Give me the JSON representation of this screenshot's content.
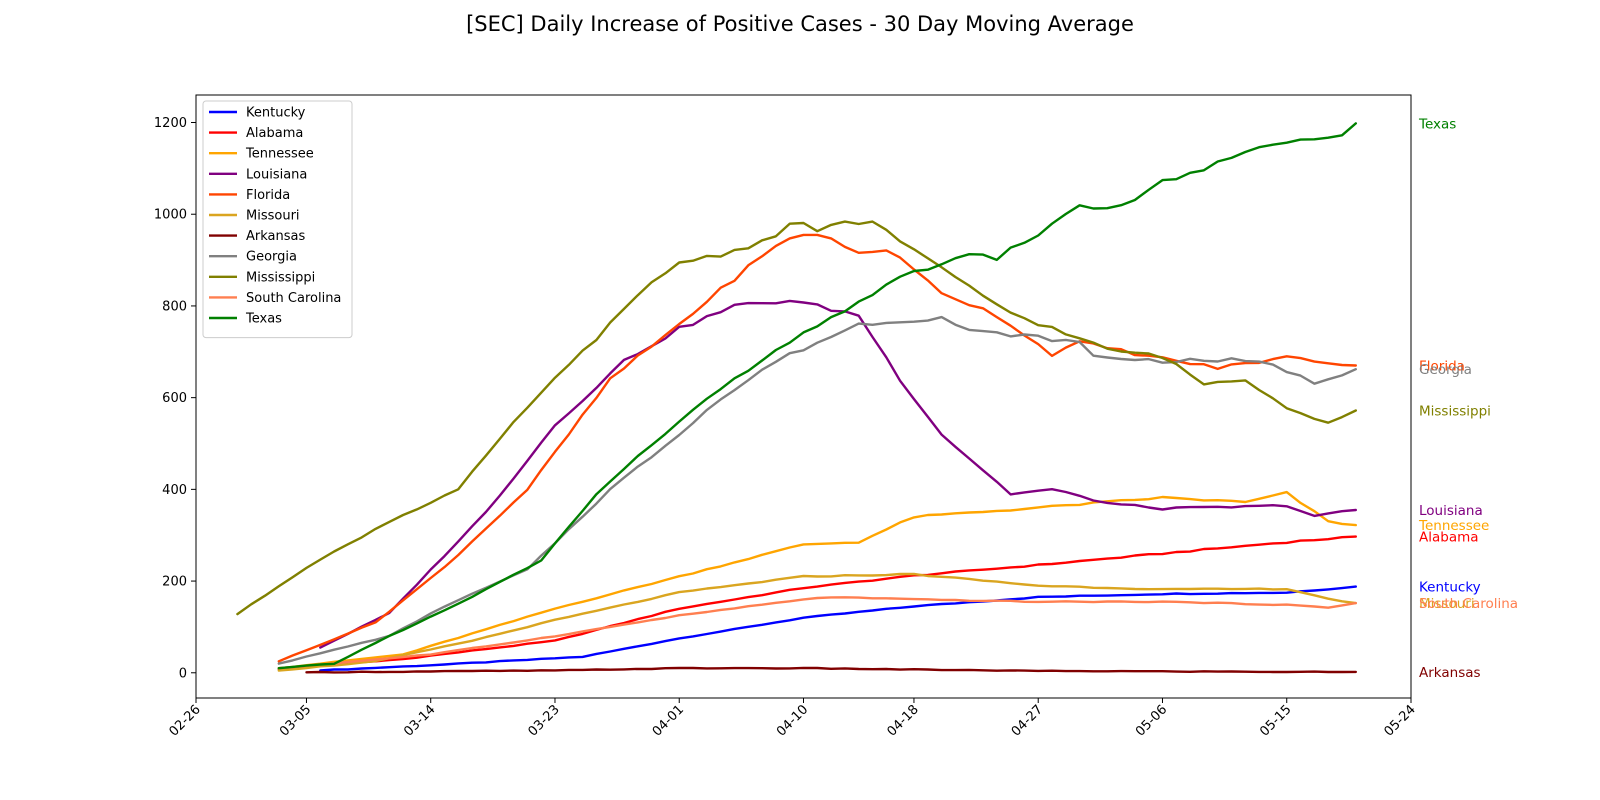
{
  "chart_data": {
    "type": "line",
    "title": "[SEC] Daily Increase of Positive Cases - 30 Day Moving Average",
    "xlabel": "",
    "ylabel": "",
    "x_range": [
      "2020-02-26",
      "2020-05-24"
    ],
    "ylim": [
      -55,
      1260
    ],
    "x_ticks": [
      "02-26",
      "03-05",
      "03-14",
      "03-23",
      "04-01",
      "04-10",
      "04-18",
      "04-27",
      "05-06",
      "05-15",
      "05-24"
    ],
    "y_ticks": [
      0,
      200,
      400,
      600,
      800,
      1000,
      1200
    ],
    "grid": false,
    "legend": "top-left",
    "end_labels": true,
    "series": [
      {
        "name": "Kentucky",
        "color": "#0000ff",
        "start": "2020-03-06",
        "points": [
          [
            "2020-03-06",
            5
          ],
          [
            "2020-03-15",
            18
          ],
          [
            "2020-03-25",
            35
          ],
          [
            "2020-04-01",
            75
          ],
          [
            "2020-04-10",
            120
          ],
          [
            "2020-04-18",
            145
          ],
          [
            "2020-04-27",
            165
          ],
          [
            "2020-05-06",
            172
          ],
          [
            "2020-05-15",
            175
          ],
          [
            "2020-05-20",
            188
          ]
        ]
      },
      {
        "name": "Alabama",
        "color": "#ff0000",
        "start": "2020-03-03",
        "points": [
          [
            "2020-03-03",
            8
          ],
          [
            "2020-03-12",
            30
          ],
          [
            "2020-03-23",
            70
          ],
          [
            "2020-04-01",
            140
          ],
          [
            "2020-04-10",
            185
          ],
          [
            "2020-04-18",
            212
          ],
          [
            "2020-04-27",
            235
          ],
          [
            "2020-05-06",
            260
          ],
          [
            "2020-05-15",
            285
          ],
          [
            "2020-05-20",
            297
          ]
        ]
      },
      {
        "name": "Tennessee",
        "color": "#ffa500",
        "start": "2020-03-03",
        "points": [
          [
            "2020-03-03",
            10
          ],
          [
            "2020-03-12",
            40
          ],
          [
            "2020-03-23",
            140
          ],
          [
            "2020-04-01",
            210
          ],
          [
            "2020-04-10",
            280
          ],
          [
            "2020-04-14",
            285
          ],
          [
            "2020-04-18",
            340
          ],
          [
            "2020-04-27",
            360
          ],
          [
            "2020-05-06",
            382
          ],
          [
            "2020-05-12",
            372
          ],
          [
            "2020-05-15",
            392
          ],
          [
            "2020-05-18",
            330
          ],
          [
            "2020-05-20",
            322
          ]
        ]
      },
      {
        "name": "Louisiana",
        "color": "#800080",
        "start": "2020-03-06",
        "points": [
          [
            "2020-03-06",
            55
          ],
          [
            "2020-03-11",
            130
          ],
          [
            "2020-03-18",
            350
          ],
          [
            "2020-03-23",
            540
          ],
          [
            "2020-03-28",
            680
          ],
          [
            "2020-04-01",
            750
          ],
          [
            "2020-04-05",
            800
          ],
          [
            "2020-04-09",
            812
          ],
          [
            "2020-04-14",
            780
          ],
          [
            "2020-04-17",
            640
          ],
          [
            "2020-04-20",
            520
          ],
          [
            "2020-04-25",
            390
          ],
          [
            "2020-04-28",
            400
          ],
          [
            "2020-05-02",
            370
          ],
          [
            "2020-05-06",
            358
          ],
          [
            "2020-05-12",
            362
          ],
          [
            "2020-05-15",
            365
          ],
          [
            "2020-05-17",
            342
          ],
          [
            "2020-05-20",
            355
          ]
        ]
      },
      {
        "name": "Florida",
        "color": "#ff4500",
        "start": "2020-03-03",
        "points": [
          [
            "2020-03-03",
            25
          ],
          [
            "2020-03-10",
            110
          ],
          [
            "2020-03-15",
            230
          ],
          [
            "2020-03-21",
            400
          ],
          [
            "2020-03-27",
            640
          ],
          [
            "2020-04-01",
            760
          ],
          [
            "2020-04-06",
            885
          ],
          [
            "2020-04-09",
            950
          ],
          [
            "2020-04-11",
            958
          ],
          [
            "2020-04-14",
            915
          ],
          [
            "2020-04-16",
            925
          ],
          [
            "2020-04-20",
            830
          ],
          [
            "2020-04-24",
            780
          ],
          [
            "2020-04-28",
            695
          ],
          [
            "2020-04-30",
            720
          ],
          [
            "2020-05-06",
            685
          ],
          [
            "2020-05-10",
            665
          ],
          [
            "2020-05-15",
            688
          ],
          [
            "2020-05-20",
            670
          ]
        ]
      },
      {
        "name": "Missouri",
        "color": "#daa520",
        "start": "2020-03-03",
        "points": [
          [
            "2020-03-03",
            5
          ],
          [
            "2020-03-10",
            25
          ],
          [
            "2020-03-17",
            70
          ],
          [
            "2020-03-23",
            115
          ],
          [
            "2020-04-01",
            175
          ],
          [
            "2020-04-10",
            210
          ],
          [
            "2020-04-18",
            215
          ],
          [
            "2020-04-27",
            190
          ],
          [
            "2020-05-06",
            182
          ],
          [
            "2020-05-15",
            183
          ],
          [
            "2020-05-19",
            155
          ],
          [
            "2020-05-20",
            152
          ]
        ]
      },
      {
        "name": "Arkansas",
        "color": "#800000",
        "start": "2020-03-05",
        "points": [
          [
            "2020-03-05",
            1
          ],
          [
            "2020-03-23",
            5
          ],
          [
            "2020-04-01",
            10
          ],
          [
            "2020-04-10",
            10
          ],
          [
            "2020-04-18",
            7
          ],
          [
            "2020-04-27",
            4
          ],
          [
            "2020-05-06",
            3
          ],
          [
            "2020-05-15",
            2
          ],
          [
            "2020-05-20",
            2
          ]
        ]
      },
      {
        "name": "Georgia",
        "color": "#808080",
        "start": "2020-03-03",
        "points": [
          [
            "2020-03-03",
            20
          ],
          [
            "2020-03-11",
            80
          ],
          [
            "2020-03-15",
            145
          ],
          [
            "2020-03-21",
            225
          ],
          [
            "2020-03-27",
            400
          ],
          [
            "2020-04-01",
            520
          ],
          [
            "2020-04-03",
            575
          ],
          [
            "2020-04-08",
            680
          ],
          [
            "2020-04-11",
            720
          ],
          [
            "2020-04-14",
            760
          ],
          [
            "2020-04-18",
            770
          ],
          [
            "2020-04-20",
            775
          ],
          [
            "2020-04-22",
            745
          ],
          [
            "2020-04-26",
            735
          ],
          [
            "2020-04-30",
            720
          ],
          [
            "2020-05-01",
            690
          ],
          [
            "2020-05-06",
            680
          ],
          [
            "2020-05-11",
            682
          ],
          [
            "2020-05-14",
            672
          ],
          [
            "2020-05-17",
            632
          ],
          [
            "2020-05-20",
            662
          ]
        ]
      },
      {
        "name": "Mississippi",
        "color": "#808000",
        "start": "2020-02-29",
        "points": [
          [
            "2020-02-29",
            128
          ],
          [
            "2020-03-05",
            230
          ],
          [
            "2020-03-11",
            330
          ],
          [
            "2020-03-16",
            400
          ],
          [
            "2020-03-21",
            580
          ],
          [
            "2020-03-25",
            700
          ],
          [
            "2020-03-30",
            850
          ],
          [
            "2020-04-01",
            895
          ],
          [
            "2020-04-04",
            912
          ],
          [
            "2020-04-08",
            950
          ],
          [
            "2020-04-09",
            985
          ],
          [
            "2020-04-11",
            965
          ],
          [
            "2020-04-13",
            980
          ],
          [
            "2020-04-15",
            985
          ],
          [
            "2020-04-18",
            920
          ],
          [
            "2020-04-21",
            860
          ],
          [
            "2020-04-25",
            785
          ],
          [
            "2020-04-29",
            740
          ],
          [
            "2020-05-02",
            705
          ],
          [
            "2020-05-06",
            690
          ],
          [
            "2020-05-09",
            630
          ],
          [
            "2020-05-12",
            640
          ],
          [
            "2020-05-15",
            580
          ],
          [
            "2020-05-18",
            545
          ],
          [
            "2020-05-20",
            572
          ]
        ]
      },
      {
        "name": "South Carolina",
        "color": "#ff7f50",
        "start": "2020-03-03",
        "points": [
          [
            "2020-03-03",
            10
          ],
          [
            "2020-03-14",
            40
          ],
          [
            "2020-03-23",
            80
          ],
          [
            "2020-04-01",
            125
          ],
          [
            "2020-04-10",
            160
          ],
          [
            "2020-04-12",
            165
          ],
          [
            "2020-04-18",
            160
          ],
          [
            "2020-04-27",
            155
          ],
          [
            "2020-05-06",
            155
          ],
          [
            "2020-05-15",
            148
          ],
          [
            "2020-05-18",
            142
          ],
          [
            "2020-05-20",
            152
          ]
        ]
      },
      {
        "name": "Texas",
        "color": "#008000",
        "start": "2020-03-03",
        "points": [
          [
            "2020-03-03",
            10
          ],
          [
            "2020-03-07",
            20
          ],
          [
            "2020-03-11",
            80
          ],
          [
            "2020-03-16",
            150
          ],
          [
            "2020-03-22",
            245
          ],
          [
            "2020-03-26",
            390
          ],
          [
            "2020-04-01",
            550
          ],
          [
            "2020-04-05",
            640
          ],
          [
            "2020-04-09",
            720
          ],
          [
            "2020-04-14",
            810
          ],
          [
            "2020-04-18",
            875
          ],
          [
            "2020-04-22",
            910
          ],
          [
            "2020-04-24",
            905
          ],
          [
            "2020-04-28",
            975
          ],
          [
            "2020-04-30",
            1018
          ],
          [
            "2020-05-03",
            1015
          ],
          [
            "2020-05-06",
            1070
          ],
          [
            "2020-05-10",
            1110
          ],
          [
            "2020-05-15",
            1160
          ],
          [
            "2020-05-18",
            1160
          ],
          [
            "2020-05-20",
            1198
          ]
        ]
      }
    ]
  }
}
